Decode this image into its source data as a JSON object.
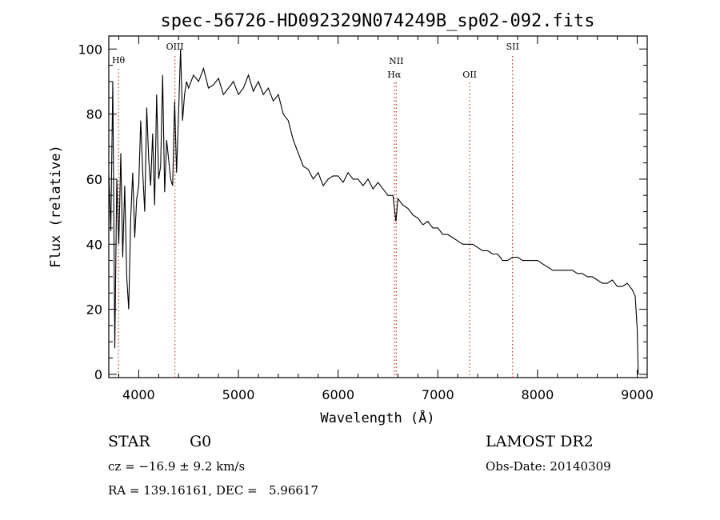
{
  "chart_data": {
    "type": "line",
    "title": "spec-56726-HD092329N074249B_sp02-092.fits",
    "xlabel": "Wavelength (Å)",
    "ylabel": "Flux (relative)",
    "xlim": [
      3700,
      9100
    ],
    "ylim": [
      -1,
      104
    ],
    "xticks": [
      4000,
      5000,
      6000,
      7000,
      8000,
      9000
    ],
    "yticks": [
      0,
      20,
      40,
      60,
      80,
      100
    ],
    "grid": false,
    "line_color": "#000000",
    "marker_color": "#c0392b",
    "lines": [
      {
        "label": "Hθ",
        "wavelength": 3797
      },
      {
        "label": "OIII",
        "wavelength": 4363
      },
      {
        "label": "NII",
        "wavelength": 6583
      },
      {
        "label": "Hα",
        "wavelength": 6563
      },
      {
        "label": "OII",
        "wavelength": 7320
      },
      {
        "label": "SII",
        "wavelength": 7750
      }
    ],
    "series": [
      {
        "x": [
          3700,
          3720,
          3740,
          3760,
          3780,
          3800,
          3820,
          3840,
          3860,
          3880,
          3900,
          3920,
          3940,
          3960,
          3980,
          4000,
          4020,
          4040,
          4060,
          4080,
          4100,
          4120,
          4140,
          4160,
          4180,
          4200,
          4220,
          4240,
          4260,
          4280,
          4300,
          4320,
          4340,
          4360,
          4380,
          4400,
          4420,
          4440,
          4460,
          4480,
          4500,
          4550,
          4600,
          4650,
          4700,
          4750,
          4800,
          4850,
          4900,
          4950,
          5000,
          5050,
          5100,
          5150,
          5200,
          5250,
          5300,
          5350,
          5400,
          5450,
          5500,
          5550,
          5600,
          5650,
          5700,
          5750,
          5800,
          5850,
          5900,
          5950,
          6000,
          6050,
          6100,
          6150,
          6200,
          6250,
          6300,
          6350,
          6400,
          6450,
          6500,
          6550,
          6580,
          6600,
          6650,
          6700,
          6750,
          6800,
          6850,
          6900,
          6950,
          7000,
          7050,
          7100,
          7150,
          7200,
          7250,
          7300,
          7350,
          7400,
          7450,
          7500,
          7550,
          7600,
          7650,
          7700,
          7750,
          7800,
          7850,
          7900,
          7950,
          8000,
          8050,
          8100,
          8150,
          8200,
          8250,
          8300,
          8350,
          8400,
          8450,
          8500,
          8550,
          8600,
          8650,
          8700,
          8750,
          8800,
          8850,
          8900,
          8950,
          8980,
          9000,
          9010
        ],
        "y": [
          62,
          44,
          90,
          8,
          60,
          40,
          68,
          36,
          58,
          30,
          20,
          48,
          62,
          42,
          54,
          58,
          78,
          62,
          50,
          82,
          66,
          58,
          74,
          52,
          86,
          60,
          64,
          92,
          56,
          72,
          66,
          60,
          58,
          84,
          62,
          80,
          100,
          78,
          86,
          90,
          88,
          92,
          90,
          94,
          88,
          89,
          91,
          86,
          88,
          90,
          86,
          88,
          92,
          87,
          90,
          86,
          88,
          84,
          86,
          80,
          78,
          72,
          68,
          64,
          63,
          60,
          62,
          58,
          60,
          61,
          61,
          59,
          62,
          60,
          60,
          58,
          60,
          57,
          59,
          57,
          55,
          55,
          47,
          54,
          52,
          51,
          49,
          48,
          46,
          47,
          45,
          45,
          43,
          43,
          42,
          41,
          40,
          40,
          40,
          39,
          38,
          38,
          37,
          37,
          35,
          35,
          36,
          36,
          35,
          35,
          35,
          35,
          34,
          33,
          32,
          32,
          32,
          32,
          32,
          31,
          31,
          30,
          30,
          29,
          28,
          28,
          29,
          27,
          27,
          28,
          26,
          24,
          14,
          0
        ]
      }
    ]
  },
  "info": {
    "class_label": "STAR",
    "subclass_label": "G0",
    "cz_text": "cz = −16.9 ± 9.2 km/s",
    "coords_text": "RA = 139.16161, DEC =   5.96617",
    "survey": "LAMOST DR2",
    "obs_date": "Obs-Date: 20140309"
  }
}
